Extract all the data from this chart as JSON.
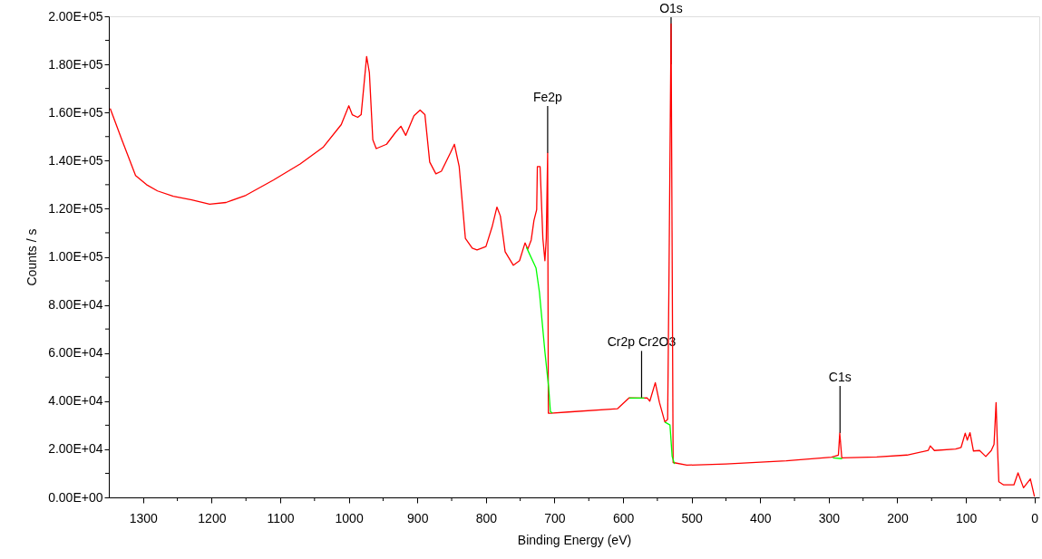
{
  "chart_data": {
    "type": "line",
    "xlabel": "Binding Energy (eV)",
    "ylabel": "Counts / s",
    "xlim": [
      1350,
      -7
    ],
    "xticks": [
      1300,
      {
        "value": 1250,
        "label": null
      },
      1200,
      {
        "value": 1150,
        "label": null
      },
      1100,
      {
        "value": 1050,
        "label": null
      },
      1000,
      {
        "value": 950,
        "label": null
      },
      900,
      {
        "value": 850,
        "label": null
      },
      800,
      {
        "value": 750,
        "label": null
      },
      700,
      {
        "value": 650,
        "label": null
      },
      600,
      {
        "value": 550,
        "label": null
      },
      500,
      {
        "value": 450,
        "label": null
      },
      400,
      {
        "value": 350,
        "label": null
      },
      300,
      {
        "value": 250,
        "label": null
      },
      200,
      {
        "value": 150,
        "label": null
      },
      100,
      {
        "value": 50,
        "label": null
      },
      0
    ],
    "ylim": [
      0,
      200000
    ],
    "yticks": [
      {
        "value": 0,
        "label": "0.00E+00"
      },
      {
        "value": 10000,
        "label": null
      },
      {
        "value": 20000,
        "label": "2.00E+04"
      },
      {
        "value": 30000,
        "label": null
      },
      {
        "value": 40000,
        "label": "4.00E+04"
      },
      {
        "value": 50000,
        "label": null
      },
      {
        "value": 60000,
        "label": "6.00E+04"
      },
      {
        "value": 70000,
        "label": null
      },
      {
        "value": 80000,
        "label": "8.00E+04"
      },
      {
        "value": 90000,
        "label": null
      },
      {
        "value": 100000,
        "label": "1.00E+05"
      },
      {
        "value": 110000,
        "label": null
      },
      {
        "value": 120000,
        "label": "1.20E+05"
      },
      {
        "value": 130000,
        "label": null
      },
      {
        "value": 140000,
        "label": "1.40E+05"
      },
      {
        "value": 150000,
        "label": null
      },
      {
        "value": 160000,
        "label": "1.60E+05"
      },
      {
        "value": 170000,
        "label": null
      },
      {
        "value": 180000,
        "label": "1.80E+05"
      },
      {
        "value": 190000,
        "label": null
      },
      {
        "value": 200000,
        "label": "2.00E+05"
      }
    ],
    "grid": false,
    "marker": "none",
    "line_style": "solid",
    "series": [
      {
        "color": "#ff0000",
        "x": [
          1348,
          1331,
          1322,
          1311,
          1295,
          1279,
          1256,
          1229,
          1203,
          1179,
          1150,
          1110,
          1071,
          1037,
          1011,
          1000,
          995,
          987,
          982,
          974,
          970,
          965,
          960,
          945,
          932,
          924,
          917,
          905,
          896,
          889,
          882,
          873,
          865,
          852,
          846,
          839,
          830,
          820,
          813,
          800,
          791,
          784,
          779,
          772,
          760,
          751,
          743,
          739,
          734,
          730,
          726,
          725,
          721,
          717,
          714,
          712,
          710,
          709,
          706,
          680,
          608,
          591,
          573,
          565,
          561,
          553,
          547,
          539,
          535,
          533,
          530,
          527,
          507,
          450,
          362,
          296,
          286,
          284,
          281,
          230,
          186,
          155,
          152,
          146,
          115,
          107,
          101,
          98,
          94,
          89,
          80,
          71,
          63,
          59,
          56,
          54,
          52,
          45,
          30,
          24,
          16,
          6,
          0
        ],
        "values": [
          161700,
          148700,
          142000,
          133800,
          130000,
          127400,
          125200,
          123700,
          121900,
          122600,
          125600,
          131900,
          138600,
          145700,
          155000,
          162800,
          159100,
          158000,
          159100,
          183300,
          176600,
          148700,
          145000,
          146800,
          151700,
          154300,
          150500,
          158700,
          161000,
          159100,
          139400,
          134500,
          135600,
          143100,
          146800,
          137500,
          107700,
          103600,
          102900,
          104300,
          112500,
          120700,
          117000,
          102100,
          96500,
          98400,
          105800,
          103200,
          107000,
          115100,
          119600,
          137500,
          137500,
          107700,
          98400,
          107700,
          143100,
          35000,
          35000,
          35500,
          36900,
          41400,
          41300,
          41400,
          40000,
          47700,
          39500,
          31300,
          32500,
          92800,
          196800,
          14500,
          13400,
          13900,
          15200,
          16700,
          17600,
          26700,
          16400,
          16800,
          17600,
          19500,
          21400,
          19500,
          20100,
          20800,
          26700,
          23800,
          26900,
          19300,
          19500,
          17000,
          19500,
          22000,
          39400,
          21400,
          6500,
          5200,
          5200,
          10200,
          4000,
          7700,
          300
        ]
      },
      {
        "color": "#00ff00",
        "x": [
          741,
          727,
          722,
          714,
          708.5,
          706,
          703,
          650,
          591,
          569,
          560,
          539,
          531.6,
          528.4,
          525,
          400,
          294,
          280.6
        ],
        "values": [
          104000,
          95400,
          85300,
          60500,
          45600,
          35700,
          35000,
          null,
          41300,
          41300,
          null,
          31300,
          30100,
          17000,
          13900,
          null,
          16400,
          16100
        ]
      }
    ],
    "annotations": [
      {
        "text": "Fe2p",
        "x": 710,
        "y": 143100
      },
      {
        "text": "O1s",
        "x": 530,
        "y": 180000
      },
      {
        "text": "Cr2p Cr2O3",
        "x": 573,
        "y": 41300
      },
      {
        "text": "C1s",
        "x": 283.6,
        "y": 26700
      }
    ]
  }
}
